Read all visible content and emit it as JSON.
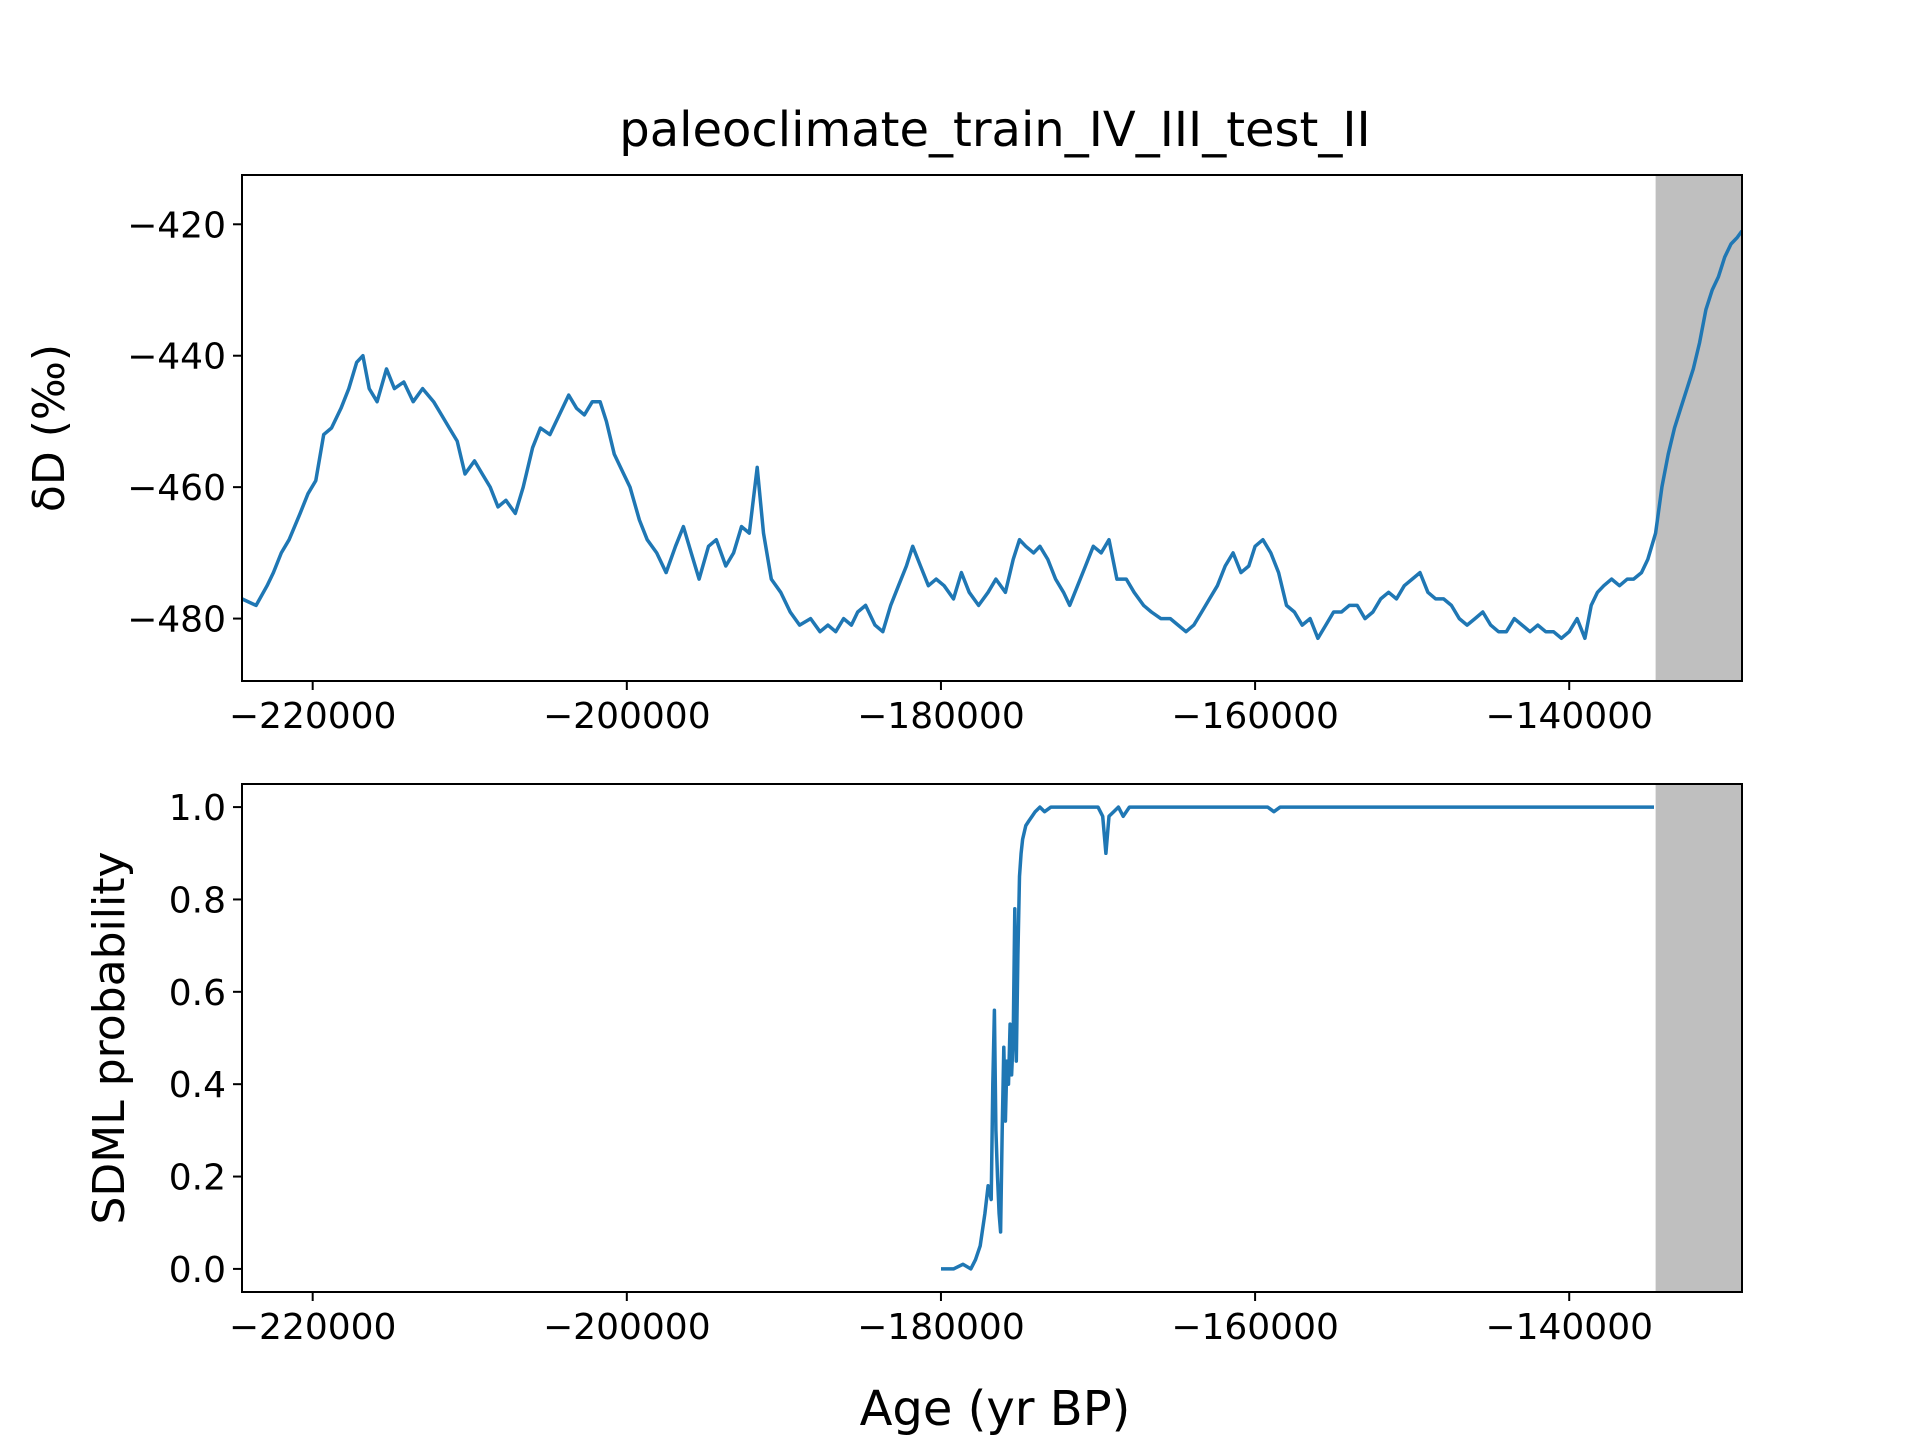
{
  "title": "paleoclimate_train_IV_III_test_II",
  "xlabel": "Age (yr BP)",
  "colors": {
    "line": "#1f77b4",
    "shade": "#bfbfbf",
    "axes": "#000000"
  },
  "chart_data": [
    {
      "type": "line",
      "ylabel": "δD (‰)",
      "xlim": [
        -224500,
        -129000
      ],
      "ylim": [
        -489.5,
        -412.5
      ],
      "xticks": [
        -220000,
        -200000,
        -180000,
        -160000,
        -140000
      ],
      "xtick_labels": [
        "−220000",
        "−200000",
        "−180000",
        "−160000",
        "−140000"
      ],
      "yticks": [
        -480,
        -460,
        -440,
        -420
      ],
      "ytick_labels": [
        "−480",
        "−460",
        "−440",
        "−420"
      ],
      "shaded_region": [
        -134500,
        -129000
      ],
      "grid": false,
      "series": [
        {
          "x": [
            -224500,
            -223600,
            -222900,
            -222500,
            -222000,
            -221500,
            -220800,
            -220300,
            -219800,
            -219300,
            -218800,
            -218200,
            -217700,
            -217200,
            -216800,
            -216400,
            -215900,
            -215300,
            -214800,
            -214200,
            -213600,
            -213000,
            -212300,
            -211800,
            -211300,
            -210800,
            -210300,
            -209700,
            -209200,
            -208700,
            -208200,
            -207700,
            -207100,
            -206600,
            -206000,
            -205500,
            -204900,
            -204300,
            -203700,
            -203200,
            -202700,
            -202200,
            -201700,
            -201300,
            -200800,
            -200200,
            -199800,
            -199200,
            -198700,
            -198100,
            -197500,
            -196900,
            -196400,
            -195900,
            -195400,
            -194800,
            -194300,
            -193700,
            -193200,
            -192700,
            -192200,
            -191700,
            -191300,
            -190800,
            -190200,
            -189600,
            -189000,
            -188300,
            -187700,
            -187200,
            -186700,
            -186200,
            -185700,
            -185300,
            -184800,
            -184200,
            -183700,
            -183200,
            -182700,
            -182200,
            -181800,
            -181300,
            -180800,
            -180300,
            -179800,
            -179200,
            -178700,
            -178200,
            -177600,
            -177000,
            -176500,
            -175900,
            -175400,
            -175000,
            -174600,
            -174100,
            -173700,
            -173200,
            -172700,
            -172200,
            -171800,
            -171300,
            -170800,
            -170300,
            -169800,
            -169300,
            -168800,
            -168200,
            -167700,
            -167100,
            -166600,
            -166000,
            -165400,
            -164900,
            -164400,
            -163900,
            -163400,
            -162900,
            -162400,
            -161900,
            -161400,
            -160900,
            -160400,
            -160000,
            -159500,
            -159000,
            -158500,
            -158000,
            -157500,
            -157000,
            -156500,
            -156000,
            -155500,
            -155000,
            -154500,
            -154000,
            -153500,
            -153000,
            -152500,
            -152000,
            -151500,
            -151000,
            -150500,
            -150000,
            -149500,
            -149000,
            -148500,
            -148000,
            -147500,
            -147000,
            -146500,
            -146000,
            -145500,
            -145000,
            -144500,
            -144000,
            -143500,
            -143000,
            -142500,
            -142000,
            -141500,
            -141000,
            -140500,
            -140000,
            -139500,
            -139000,
            -138600,
            -138200,
            -137800,
            -137300,
            -136800,
            -136300,
            -135900,
            -135400,
            -135000,
            -134500,
            -134100,
            -133700,
            -133300,
            -132900,
            -132500,
            -132100,
            -131700,
            -131300,
            -130900,
            -130500,
            -130100,
            -129700,
            -129300,
            -129000
          ],
          "y": [
            -477,
            -478,
            -475,
            -473,
            -470,
            -468,
            -464,
            -461,
            -459,
            -452,
            -451,
            -448,
            -445,
            -441,
            -440,
            -445,
            -447,
            -442,
            -445,
            -444,
            -447,
            -445,
            -447,
            -449,
            -451,
            -453,
            -458,
            -456,
            -458,
            -460,
            -463,
            -462,
            -464,
            -460,
            -454,
            -451,
            -452,
            -449,
            -446,
            -448,
            -449,
            -447,
            -447,
            -450,
            -455,
            -458,
            -460,
            -465,
            -468,
            -470,
            -473,
            -469,
            -466,
            -470,
            -474,
            -469,
            -468,
            -472,
            -470,
            -466,
            -467,
            -457,
            -467,
            -474,
            -476,
            -479,
            -481,
            -480,
            -482,
            -481,
            -482,
            -480,
            -481,
            -479,
            -478,
            -481,
            -482,
            -478,
            -475,
            -472,
            -469,
            -472,
            -475,
            -474,
            -475,
            -477,
            -473,
            -476,
            -478,
            -476,
            -474,
            -476,
            -471,
            -468,
            -469,
            -470,
            -469,
            -471,
            -474,
            -476,
            -478,
            -475,
            -472,
            -469,
            -470,
            -468,
            -474,
            -474,
            -476,
            -478,
            -479,
            -480,
            -480,
            -481,
            -482,
            -481,
            -479,
            -477,
            -475,
            -472,
            -470,
            -473,
            -472,
            -469,
            -468,
            -470,
            -473,
            -478,
            -479,
            -481,
            -480,
            -483,
            -481,
            -479,
            -479,
            -478,
            -478,
            -480,
            -479,
            -477,
            -476,
            -477,
            -475,
            -474,
            -473,
            -476,
            -477,
            -477,
            -478,
            -480,
            -481,
            -480,
            -479,
            -481,
            -482,
            -482,
            -480,
            -481,
            -482,
            -481,
            -482,
            -482,
            -483,
            -482,
            -480,
            -483,
            -478,
            -476,
            -475,
            -474,
            -475,
            -474,
            -474,
            -473,
            -471,
            -467,
            -460,
            -455,
            -451,
            -448,
            -445,
            -442,
            -438,
            -433,
            -430,
            -428,
            -425,
            -423,
            -422,
            -421
          ]
        }
      ]
    },
    {
      "type": "line",
      "ylabel": "SDML probability",
      "xlim": [
        -224500,
        -129000
      ],
      "ylim": [
        -0.05,
        1.05
      ],
      "xticks": [
        -220000,
        -200000,
        -180000,
        -160000,
        -140000
      ],
      "xtick_labels": [
        "−220000",
        "−200000",
        "−180000",
        "−160000",
        "−140000"
      ],
      "yticks": [
        0.0,
        0.2,
        0.4,
        0.6,
        0.8,
        1.0
      ],
      "ytick_labels": [
        "0.0",
        "0.2",
        "0.4",
        "0.6",
        "0.8",
        "1.0"
      ],
      "shaded_region": [
        -134500,
        -129000
      ],
      "grid": false,
      "series": [
        {
          "x": [
            -180000,
            -179200,
            -178600,
            -178100,
            -177800,
            -177500,
            -177200,
            -177000,
            -176800,
            -176700,
            -176600,
            -176500,
            -176400,
            -176300,
            -176200,
            -176100,
            -176000,
            -175900,
            -175800,
            -175700,
            -175600,
            -175500,
            -175400,
            -175300,
            -175200,
            -175100,
            -175000,
            -174900,
            -174800,
            -174600,
            -174400,
            -174200,
            -174000,
            -173700,
            -173400,
            -173000,
            -172500,
            -172000,
            -171500,
            -171000,
            -170500,
            -170000,
            -169700,
            -169500,
            -169300,
            -169000,
            -168700,
            -168400,
            -168000,
            -167000,
            -165000,
            -163000,
            -160000,
            -159200,
            -158800,
            -158400,
            -156000,
            -150000,
            -145000,
            -140000,
            -134600
          ],
          "y": [
            0.0,
            0.0,
            0.01,
            0.0,
            0.02,
            0.05,
            0.12,
            0.18,
            0.15,
            0.4,
            0.56,
            0.3,
            0.2,
            0.12,
            0.08,
            0.3,
            0.48,
            0.32,
            0.45,
            0.4,
            0.53,
            0.42,
            0.5,
            0.78,
            0.45,
            0.68,
            0.85,
            0.9,
            0.93,
            0.96,
            0.97,
            0.98,
            0.99,
            1.0,
            0.99,
            1.0,
            1.0,
            1.0,
            1.0,
            1.0,
            1.0,
            1.0,
            0.98,
            0.9,
            0.98,
            0.99,
            1.0,
            0.98,
            1.0,
            1.0,
            1.0,
            1.0,
            1.0,
            1.0,
            0.99,
            1.0,
            1.0,
            1.0,
            1.0,
            1.0,
            1.0
          ]
        }
      ]
    }
  ]
}
